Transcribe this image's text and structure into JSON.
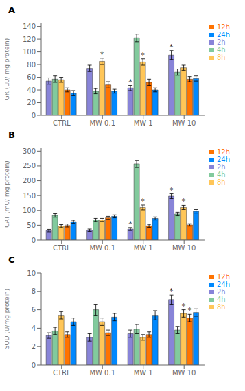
{
  "chart_data": [
    {
      "type": "bar",
      "title": "A",
      "ylabel": "GR (μU/ mg protein)",
      "categories": [
        "CTRL",
        "MW 0.1",
        "MW 1",
        "MW 10"
      ],
      "ylim": [
        0,
        145
      ],
      "yticks": [
        0,
        20,
        40,
        60,
        80,
        100,
        120,
        140
      ],
      "grid": false,
      "legend": "upper right",
      "series": [
        {
          "name": "2h",
          "color": "#8884d8",
          "values": [
            54,
            74,
            43,
            95
          ],
          "errors": [
            5,
            5,
            4,
            7
          ],
          "annotations": [
            null,
            null,
            "*",
            "*"
          ]
        },
        {
          "name": "4h",
          "color": "#82ca9d",
          "values": [
            57,
            38,
            122,
            68
          ],
          "errors": [
            5,
            4,
            6,
            5
          ],
          "annotations": [
            null,
            null,
            null,
            null
          ]
        },
        {
          "name": "8h",
          "color": "#ffc658",
          "values": [
            56,
            85,
            84,
            75
          ],
          "errors": [
            4,
            5,
            5,
            4
          ],
          "annotations": [
            null,
            "*",
            "*",
            null
          ]
        },
        {
          "name": "12h",
          "color": "#ff7300",
          "values": [
            40,
            48,
            52,
            57
          ],
          "errors": [
            3,
            5,
            5,
            4
          ],
          "annotations": [
            null,
            null,
            null,
            null
          ]
        },
        {
          "name": "24h",
          "color": "#0088fe",
          "values": [
            35,
            38,
            40,
            58
          ],
          "errors": [
            4,
            3,
            3,
            4
          ],
          "annotations": [
            null,
            null,
            null,
            null
          ]
        }
      ]
    },
    {
      "type": "bar",
      "title": "B",
      "ylabel": "CAT (mU/ mg protein)",
      "categories": [
        "CTRL",
        "MW 0.1",
        "MW 1",
        "MW 10"
      ],
      "ylim": [
        0,
        310
      ],
      "yticks": [
        0,
        50,
        100,
        150,
        200,
        250,
        300
      ],
      "grid": false,
      "legend": "upper right",
      "series": [
        {
          "name": "2h",
          "color": "#8884d8",
          "values": [
            32,
            33,
            37,
            148
          ],
          "errors": [
            4,
            4,
            5,
            8
          ],
          "annotations": [
            null,
            null,
            "*",
            "*"
          ]
        },
        {
          "name": "4h",
          "color": "#82ca9d",
          "values": [
            83,
            68,
            257,
            88
          ],
          "errors": [
            6,
            5,
            12,
            6
          ],
          "annotations": [
            null,
            null,
            null,
            null
          ]
        },
        {
          "name": "8h",
          "color": "#ffc658",
          "values": [
            47,
            68,
            110,
            110
          ],
          "errors": [
            5,
            5,
            8,
            7
          ],
          "annotations": [
            null,
            null,
            "*",
            "*"
          ]
        },
        {
          "name": "12h",
          "color": "#ff7300",
          "values": [
            49,
            75,
            48,
            51
          ],
          "errors": [
            5,
            5,
            5,
            4
          ],
          "annotations": [
            null,
            null,
            null,
            null
          ]
        },
        {
          "name": "24h",
          "color": "#0088fe",
          "values": [
            62,
            80,
            73,
            97
          ],
          "errors": [
            5,
            5,
            5,
            6
          ],
          "annotations": [
            null,
            null,
            null,
            null
          ]
        }
      ]
    },
    {
      "type": "bar",
      "title": "C",
      "ylabel": "SOD (U/mg protein)",
      "categories": [
        "CTRL",
        "MW 0.1",
        "MW 1",
        "MW 10"
      ],
      "ylim": [
        0,
        10
      ],
      "yticks": [
        0,
        2,
        4,
        6,
        8,
        10
      ],
      "grid": false,
      "legend": "upper right",
      "series": [
        {
          "name": "2h",
          "color": "#8884d8",
          "values": [
            3.2,
            3.0,
            3.4,
            7.1
          ],
          "errors": [
            0.3,
            0.4,
            0.4,
            0.5
          ],
          "annotations": [
            null,
            null,
            null,
            "*"
          ]
        },
        {
          "name": "4h",
          "color": "#82ca9d",
          "values": [
            3.7,
            6.0,
            3.9,
            3.8
          ],
          "errors": [
            0.4,
            0.6,
            0.5,
            0.4
          ],
          "annotations": [
            null,
            null,
            null,
            null
          ]
        },
        {
          "name": "8h",
          "color": "#ffc658",
          "values": [
            5.4,
            4.7,
            3.0,
            5.6
          ],
          "errors": [
            0.4,
            0.4,
            0.3,
            0.4
          ],
          "annotations": [
            null,
            null,
            null,
            "*"
          ]
        },
        {
          "name": "12h",
          "color": "#ff7300",
          "values": [
            3.3,
            3.5,
            3.3,
            5.1
          ],
          "errors": [
            0.3,
            0.3,
            0.3,
            0.4
          ],
          "annotations": [
            null,
            null,
            null,
            "*"
          ]
        },
        {
          "name": "24h",
          "color": "#0088fe",
          "values": [
            4.7,
            5.2,
            5.4,
            5.7
          ],
          "errors": [
            0.4,
            0.4,
            0.5,
            0.4
          ],
          "annotations": [
            null,
            null,
            null,
            null
          ]
        }
      ]
    }
  ]
}
